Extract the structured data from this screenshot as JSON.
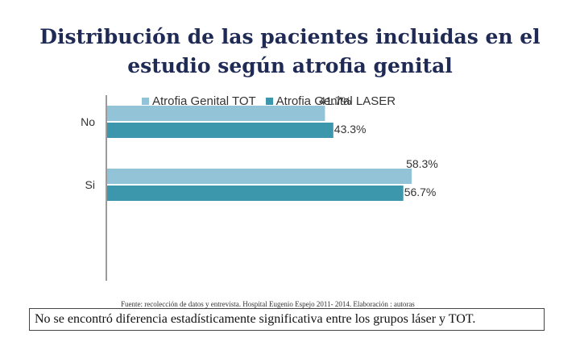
{
  "chart_data": {
    "type": "bar",
    "orientation": "horizontal",
    "title": "Distribución de las pacientes incluidas en el estudio según atrofia genital",
    "categories": [
      "No",
      "Si"
    ],
    "series": [
      {
        "name": "Atrofia Genital  TOT",
        "values": [
          41.7,
          58.3
        ],
        "labels": [
          "41.7%",
          "58.3%"
        ],
        "color": "#93c3d6"
      },
      {
        "name": "Atrofia Genital  LASER",
        "values": [
          43.3,
          56.7
        ],
        "labels": [
          "43.3%",
          "56.7%"
        ],
        "color": "#3c97ad"
      }
    ],
    "xlim": [
      0,
      66
    ],
    "legend_position": "top",
    "grid": false
  },
  "footer": {
    "source": "Fuente: recolección de datos y entrevista. Hospital Eugenio Espejo 2011- 2014. Elaboración : autoras",
    "conclusion": "No se encontró diferencia estadísticamente significativa  entre los grupos láser y TOT."
  }
}
